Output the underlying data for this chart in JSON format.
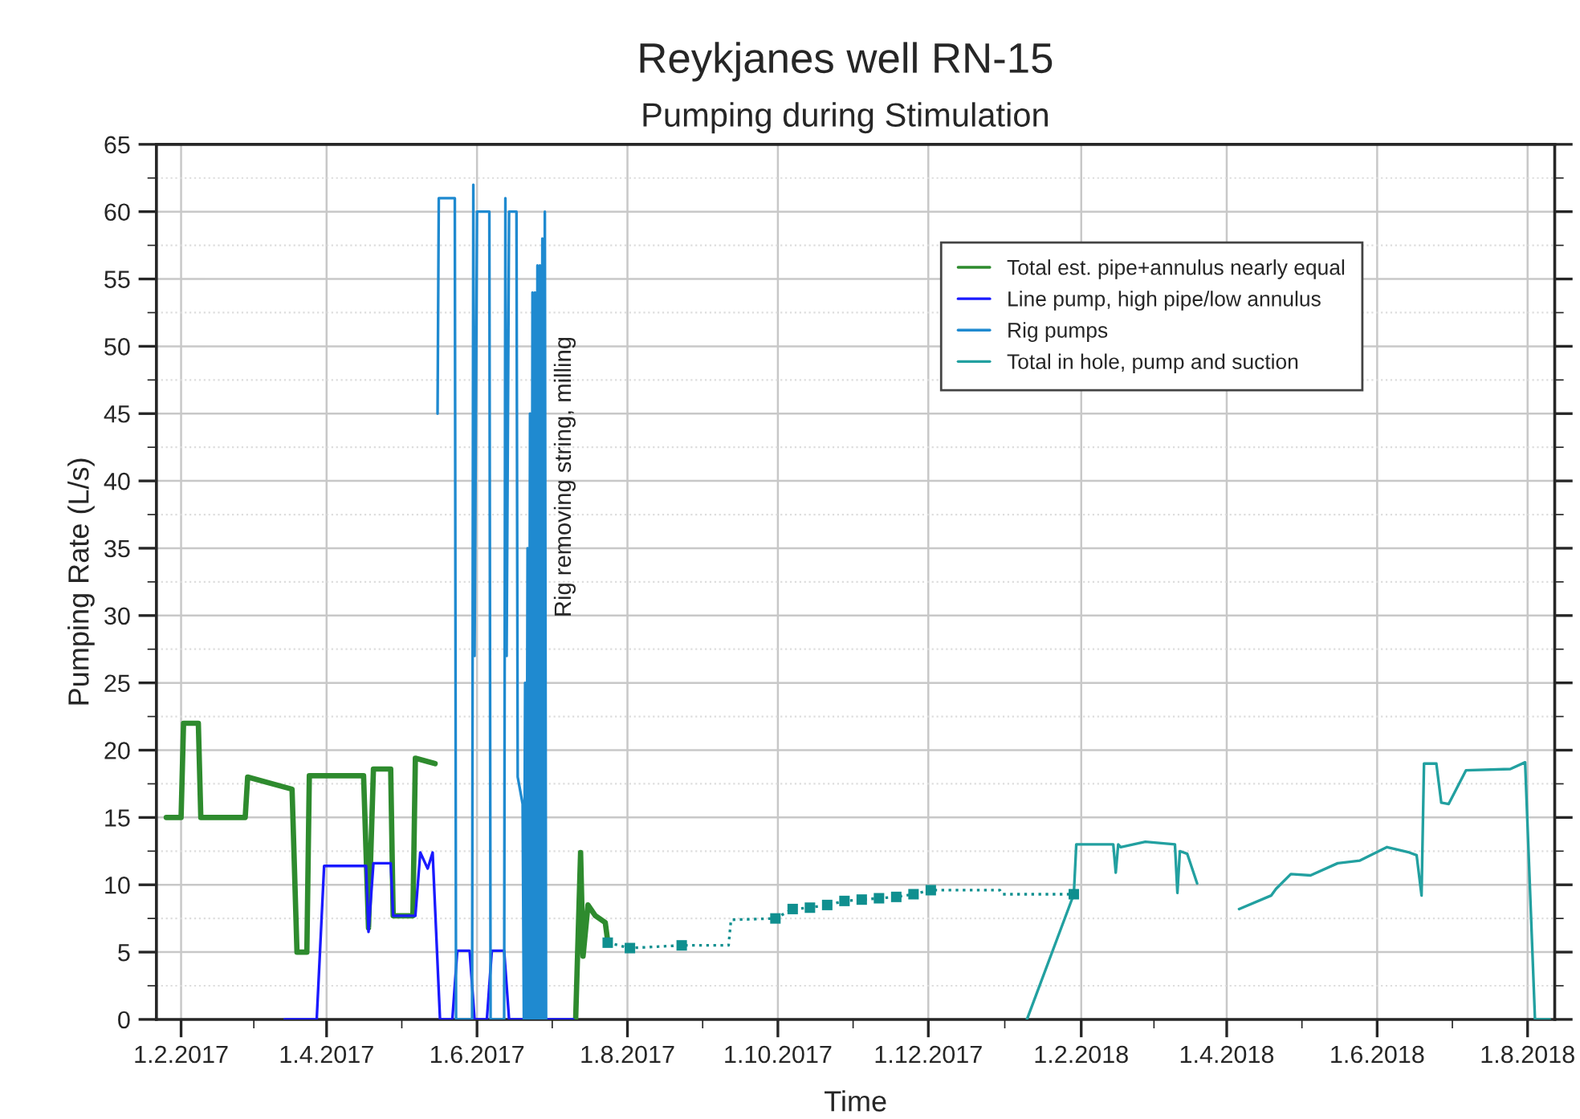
{
  "chart_data": {
    "type": "line",
    "title": "Reykjanes well RN-15",
    "subtitle": "Pumping during Stimulation",
    "xlabel": "Time",
    "ylabel": "Pumping Rate (L/s)",
    "xlim": [
      "2017-01-22",
      "2018-08-12"
    ],
    "xticks": [
      {
        "value": "2017-02-01",
        "label": "1.2.2017"
      },
      {
        "value": "2017-04-01",
        "label": "1.4.2017"
      },
      {
        "value": "2017-06-01",
        "label": "1.6.2017"
      },
      {
        "value": "2017-08-01",
        "label": "1.8.2017"
      },
      {
        "value": "2017-10-01",
        "label": "1.10.2017"
      },
      {
        "value": "2017-12-01",
        "label": "1.12.2017"
      },
      {
        "value": "2018-02-01",
        "label": "1.2.2018"
      },
      {
        "value": "2018-04-01",
        "label": "1.4.2018"
      },
      {
        "value": "2018-06-01",
        "label": "1.6.2018"
      },
      {
        "value": "2018-08-01",
        "label": "1.8.2018"
      }
    ],
    "ylim": [
      0,
      65
    ],
    "yticks": [
      0,
      5,
      10,
      15,
      20,
      25,
      30,
      35,
      40,
      45,
      50,
      55,
      60,
      65
    ],
    "grid": true,
    "legend": "top right",
    "annotations": [
      "Rig removing string, milling"
    ],
    "series": [
      {
        "name": "Total est. pipe+annulus nearly equal",
        "color": "#2e8b2e",
        "x": [
          "2017-01-26",
          "2017-02-01",
          "2017-02-02",
          "2017-02-08",
          "2017-02-09",
          "2017-02-27",
          "2017-02-28",
          "2017-03-18",
          "2017-03-20",
          "2017-03-24",
          "2017-03-25",
          "2017-04-16",
          "2017-04-18",
          "2017-04-20",
          "2017-04-27",
          "2017-04-28",
          "2017-05-06",
          "2017-05-07",
          "2017-05-15",
          "2017-06-01",
          "2017-07-11",
          "2017-07-13",
          "2017-07-14",
          "2017-07-16",
          "2017-07-19",
          "2017-07-23",
          "2017-07-24"
        ],
        "values": [
          15,
          15,
          22,
          22,
          15,
          15,
          18,
          17.1,
          5,
          5,
          18.1,
          18.1,
          6.8,
          18.6,
          18.6,
          7.7,
          7.7,
          19.4,
          19,
          null,
          0,
          12.4,
          4.7,
          8.5,
          7.7,
          7.2,
          5.8
        ]
      },
      {
        "name": "Line pump, high pipe/low annulus",
        "color": "#1a1aff",
        "x": [
          "2017-03-15",
          "2017-03-28",
          "2017-03-31",
          "2017-04-17",
          "2017-04-18",
          "2017-04-20",
          "2017-04-27",
          "2017-04-28",
          "2017-05-07",
          "2017-05-09",
          "2017-05-12",
          "2017-05-14",
          "2017-05-17",
          "2017-05-22",
          "2017-05-24",
          "2017-05-29",
          "2017-05-31",
          "2017-06-05",
          "2017-06-07",
          "2017-06-12",
          "2017-06-14",
          "2017-07-10"
        ],
        "values": [
          0,
          0,
          11.4,
          11.4,
          6.5,
          11.6,
          11.6,
          7.7,
          7.7,
          12.4,
          11.2,
          12.4,
          0,
          0,
          5.1,
          5.1,
          0,
          0,
          5.1,
          5.1,
          0,
          0
        ]
      },
      {
        "name": "Rig pumps",
        "color": "#1f8ad0",
        "x": [
          "2017-05-16",
          "2017-05-16T12:00",
          "2017-05-23",
          "2017-05-23T12:00",
          "2017-05-30",
          "2017-05-30T12:00",
          "2017-05-31",
          "2017-06-01",
          "2017-06-06",
          "2017-06-06T12:00",
          "2017-06-12",
          "2017-06-12T12:00",
          "2017-06-13",
          "2017-06-14",
          "2017-06-17",
          "2017-06-17T12:00",
          "2017-06-19T12:00",
          "2017-06-20T00:00",
          "2017-06-20T12:00",
          "2017-06-21T00:00",
          "2017-06-21T12:00",
          "2017-06-22T00:00",
          "2017-06-22T12:00",
          "2017-06-23T00:00",
          "2017-06-23T12:00",
          "2017-06-24T00:00",
          "2017-06-24T12:00",
          "2017-06-25T00:00",
          "2017-06-25T12:00",
          "2017-06-26T00:00",
          "2017-06-26T12:00",
          "2017-06-27T00:00",
          "2017-06-27T12:00",
          "2017-06-28T00:00",
          "2017-06-28T12:00",
          "2017-06-29T00:00"
        ],
        "values": [
          45,
          61,
          61,
          0,
          0,
          62,
          27,
          60,
          60,
          0,
          0,
          61,
          27,
          60,
          60,
          18,
          16,
          0,
          25,
          0,
          35,
          0,
          45,
          0,
          54,
          0,
          54,
          0,
          56,
          0,
          56,
          0,
          58,
          0,
          60,
          0
        ]
      },
      {
        "line_style": "dotted",
        "color": "#0f8f8f",
        "x": [
          "2017-07-24",
          "2017-08-02",
          "2017-08-23",
          "2017-09-11",
          "2017-09-12",
          "2017-09-30",
          "2017-10-07",
          "2017-10-14",
          "2017-10-21",
          "2017-10-28",
          "2017-11-04",
          "2017-11-11",
          "2017-11-18",
          "2017-11-25",
          "2017-12-02",
          "2017-12-30",
          "2017-12-31",
          "2018-01-29"
        ],
        "values": [
          5.7,
          5.3,
          5.5,
          5.5,
          7.4,
          7.5,
          8.2,
          8.3,
          8.5,
          8.8,
          8.9,
          9.0,
          9.1,
          9.3,
          9.6,
          9.6,
          9.3,
          9.3
        ]
      },
      {
        "type": "scatter",
        "marker": "square",
        "color": "#0f8f8f",
        "x": [
          "2017-07-24",
          "2017-08-02",
          "2017-08-23",
          "2017-09-30",
          "2017-10-07",
          "2017-10-14",
          "2017-10-21",
          "2017-10-28",
          "2017-11-04",
          "2017-11-11",
          "2017-11-18",
          "2017-11-25",
          "2017-12-02",
          "2018-01-29"
        ],
        "values": [
          5.7,
          5.3,
          5.5,
          7.5,
          8.2,
          8.3,
          8.5,
          8.8,
          8.9,
          9.0,
          9.1,
          9.3,
          9.6,
          9.3
        ]
      },
      {
        "name": "Total in hole, pump and suction",
        "color": "#22a0a0",
        "x": [
          "2018-01-10",
          "2018-01-29",
          "2018-01-30",
          "2018-02-14",
          "2018-02-15",
          "2018-02-16",
          "2018-02-17",
          "2018-02-27",
          "2018-03-11",
          "2018-03-12",
          "2018-03-13",
          "2018-03-16",
          "2018-03-20",
          "2018-04-01",
          "2018-04-06",
          "2018-04-19",
          "2018-04-21",
          "2018-04-27",
          "2018-05-05",
          "2018-05-16",
          "2018-05-25",
          "2018-06-05",
          "2018-06-14",
          "2018-06-17",
          "2018-06-19",
          "2018-06-20",
          "2018-06-25",
          "2018-06-27",
          "2018-06-30",
          "2018-07-07",
          "2018-07-25",
          "2018-07-31",
          "2018-08-04",
          "2018-08-10"
        ],
        "values": [
          0,
          9.3,
          13,
          13,
          10.9,
          13,
          12.8,
          13.2,
          13,
          9.4,
          12.5,
          12.3,
          10.1,
          null,
          8.2,
          9.2,
          9.7,
          10.8,
          10.7,
          11.6,
          11.8,
          12.8,
          12.4,
          12.2,
          9.2,
          19,
          19,
          16.1,
          16,
          18.5,
          18.6,
          19.1,
          0,
          0
        ]
      }
    ]
  }
}
